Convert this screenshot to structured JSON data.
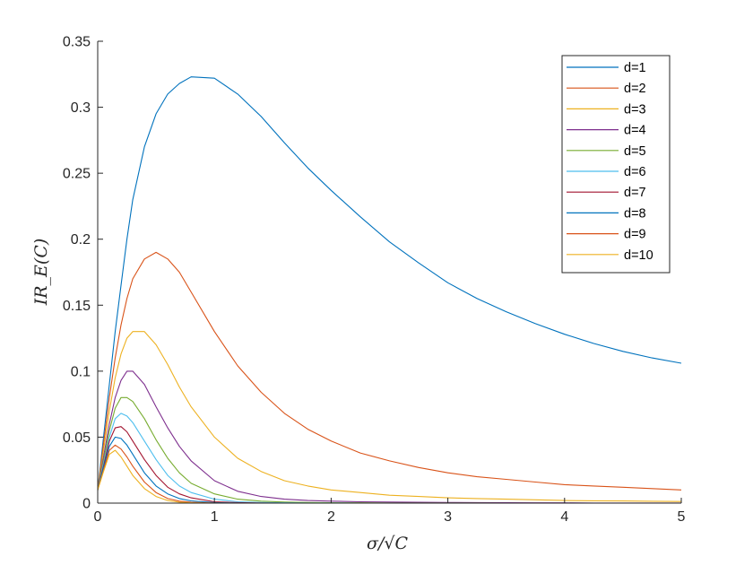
{
  "chart_data": {
    "type": "line",
    "title": "",
    "xlabel": "σ/√C",
    "ylabel": "IR_E(C)",
    "xlim": [
      0,
      5
    ],
    "ylim": [
      0,
      0.35
    ],
    "xticks": [
      0,
      1,
      2,
      3,
      4,
      5
    ],
    "xtick_labels": [
      "0",
      "1",
      "2",
      "3",
      "4",
      "5"
    ],
    "yticks": [
      0,
      0.05,
      0.1,
      0.15,
      0.2,
      0.25,
      0.3,
      0.35
    ],
    "ytick_labels": [
      "0",
      "0.05",
      "0.1",
      "0.15",
      "0.2",
      "0.25",
      "0.3",
      "0.35"
    ],
    "grid": false,
    "legend_position": "top-right",
    "x": [
      0,
      0.05,
      0.1,
      0.15,
      0.2,
      0.25,
      0.3,
      0.4,
      0.5,
      0.6,
      0.7,
      0.8,
      1.0,
      1.2,
      1.4,
      1.6,
      1.8,
      2.0,
      2.25,
      2.5,
      2.75,
      3.0,
      3.25,
      3.5,
      3.75,
      4.0,
      4.25,
      4.5,
      4.75,
      5.0
    ],
    "series": [
      {
        "name": "d=1",
        "color": "#0072BD",
        "values": [
          0.01,
          0.05,
          0.09,
          0.13,
          0.165,
          0.2,
          0.23,
          0.27,
          0.295,
          0.31,
          0.318,
          0.323,
          0.322,
          0.31,
          0.293,
          0.273,
          0.254,
          0.237,
          0.217,
          0.198,
          0.182,
          0.167,
          0.155,
          0.145,
          0.136,
          0.128,
          0.121,
          0.115,
          0.11,
          0.106
        ]
      },
      {
        "name": "d=2",
        "color": "#D95319",
        "values": [
          0.01,
          0.045,
          0.08,
          0.11,
          0.135,
          0.155,
          0.17,
          0.185,
          0.19,
          0.185,
          0.175,
          0.16,
          0.13,
          0.104,
          0.084,
          0.068,
          0.056,
          0.047,
          0.038,
          0.032,
          0.027,
          0.023,
          0.02,
          0.018,
          0.016,
          0.014,
          0.013,
          0.012,
          0.011,
          0.01
        ]
      },
      {
        "name": "d=3",
        "color": "#EDB120",
        "values": [
          0.01,
          0.04,
          0.07,
          0.095,
          0.113,
          0.125,
          0.13,
          0.13,
          0.12,
          0.105,
          0.088,
          0.073,
          0.05,
          0.034,
          0.024,
          0.017,
          0.013,
          0.01,
          0.008,
          0.006,
          0.005,
          0.004,
          0.0035,
          0.003,
          0.0025,
          0.002,
          0.0018,
          0.0016,
          0.0014,
          0.0012
        ]
      },
      {
        "name": "d=4",
        "color": "#7E2F8E",
        "values": [
          0.01,
          0.035,
          0.06,
          0.08,
          0.093,
          0.1,
          0.1,
          0.09,
          0.073,
          0.057,
          0.043,
          0.032,
          0.017,
          0.009,
          0.005,
          0.003,
          0.002,
          0.0015,
          0.001,
          0.0008,
          0.0006,
          0.0005,
          0.0004,
          0.0003,
          0.0002,
          0.0002,
          0.0001,
          0.0001,
          0.0001,
          0.0001
        ]
      },
      {
        "name": "d=5",
        "color": "#77AC30",
        "values": [
          0.01,
          0.032,
          0.055,
          0.072,
          0.08,
          0.08,
          0.077,
          0.064,
          0.048,
          0.034,
          0.023,
          0.015,
          0.007,
          0.003,
          0.0015,
          0.0008,
          0.0005,
          0.0003,
          0.0002,
          0.0001,
          0.0001,
          0.0001,
          0.0001,
          0,
          0,
          0,
          0,
          0,
          0,
          0
        ]
      },
      {
        "name": "d=6",
        "color": "#4DBEEE",
        "values": [
          0.01,
          0.03,
          0.05,
          0.064,
          0.068,
          0.066,
          0.061,
          0.047,
          0.033,
          0.021,
          0.013,
          0.008,
          0.003,
          0.001,
          0.0005,
          0.0002,
          0.0001,
          0.0001,
          0,
          0,
          0,
          0,
          0,
          0,
          0,
          0,
          0,
          0,
          0,
          0
        ]
      },
      {
        "name": "d=7",
        "color": "#A2142F",
        "values": [
          0.01,
          0.028,
          0.047,
          0.057,
          0.058,
          0.054,
          0.047,
          0.033,
          0.021,
          0.012,
          0.007,
          0.004,
          0.001,
          0.0004,
          0.0001,
          0,
          0,
          0,
          0,
          0,
          0,
          0,
          0,
          0,
          0,
          0,
          0,
          0,
          0,
          0
        ]
      },
      {
        "name": "d=8",
        "color": "#0072BD",
        "values": [
          0.01,
          0.027,
          0.043,
          0.05,
          0.049,
          0.044,
          0.037,
          0.023,
          0.013,
          0.007,
          0.0035,
          0.0017,
          0.0004,
          0.0001,
          0,
          0,
          0,
          0,
          0,
          0,
          0,
          0,
          0,
          0,
          0,
          0,
          0,
          0,
          0,
          0
        ]
      },
      {
        "name": "d=9",
        "color": "#D95319",
        "values": [
          0.01,
          0.025,
          0.04,
          0.044,
          0.041,
          0.035,
          0.028,
          0.016,
          0.008,
          0.0035,
          0.0015,
          0.0006,
          0.0001,
          0,
          0,
          0,
          0,
          0,
          0,
          0,
          0,
          0,
          0,
          0,
          0,
          0,
          0,
          0,
          0,
          0
        ]
      },
      {
        "name": "d=10",
        "color": "#EDB120",
        "values": [
          0.01,
          0.024,
          0.037,
          0.04,
          0.035,
          0.028,
          0.021,
          0.011,
          0.005,
          0.002,
          0.0007,
          0.0002,
          0,
          0,
          0,
          0,
          0,
          0,
          0,
          0,
          0,
          0,
          0,
          0,
          0,
          0,
          0,
          0,
          0,
          0
        ]
      }
    ]
  }
}
